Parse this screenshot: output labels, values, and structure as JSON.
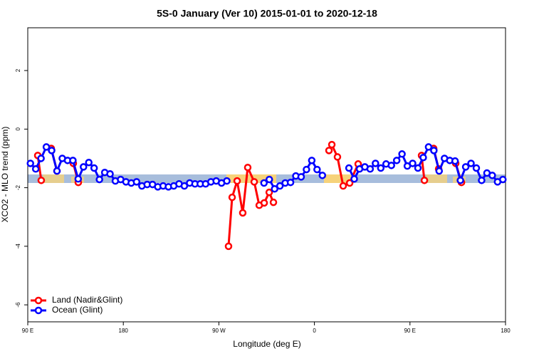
{
  "chart_data": {
    "type": "line",
    "title": "5S-0 January (Ver 10)   2015-01-01 to 2020-12-18",
    "xlabel": "Longitude (deg E)",
    "ylabel": "XCO2 - MLO trend (ppm)",
    "xlim": [
      90,
      540
    ],
    "ylim": [
      -6.58,
      3.46
    ],
    "xticks": [
      {
        "value": 90,
        "label": "90 E"
      },
      180,
      {
        "value": 270,
        "label": "90 W"
      },
      {
        "value": 360,
        "label": "0"
      },
      {
        "value": 450,
        "label": "90 E"
      },
      {
        "value": 540,
        "label": "180"
      }
    ],
    "yticks": [
      2,
      0,
      -2,
      -4,
      -6
    ],
    "legend": "bottom-left",
    "series": [
      {
        "name": "Land (Nadir&Glint)",
        "color": "#ff0000",
        "x": [
          99.4,
          102.7,
          null,
          112.1,
          117.5,
          null,
          132.9,
          137.6,
          null,
          279.1,
          282.5,
          287.2,
          292.5,
          297.2,
          303.3,
          308.0,
          312.7,
          317.4,
          321.4,
          null,
          373.7,
          376.4,
          381.7,
          387.1,
          393.2,
          401.2,
          null,
          460.9,
          463.6,
          null,
          472.3,
          477.0,
          null,
          493.1,
          498.5
        ],
        "values": [
          -0.9,
          -1.75,
          null,
          -0.66,
          -1.43,
          null,
          -1.17,
          -1.82,
          null,
          -4.0,
          -2.33,
          -1.77,
          -2.86,
          -1.31,
          -1.8,
          -2.6,
          -2.52,
          -2.16,
          -2.5,
          null,
          -0.73,
          -0.53,
          -0.95,
          -1.94,
          -1.84,
          -1.19,
          null,
          -0.9,
          -1.75,
          null,
          -0.66,
          -1.36,
          null,
          -1.17,
          -1.82
        ]
      },
      {
        "name": "Ocean (Glint)",
        "color": "#0000ff",
        "x": [
          92.5,
          97.5,
          102.5,
          107.5,
          112.5,
          117.5,
          122.5,
          127.5,
          132.5,
          137.5,
          142.5,
          147.5,
          152.5,
          157.5,
          162.5,
          167.5,
          172.5,
          177.5,
          182.5,
          187.5,
          192.5,
          197.5,
          202.5,
          207.5,
          212.5,
          217.5,
          222.5,
          227.5,
          232.5,
          237.5,
          242.5,
          247.5,
          252.5,
          257.5,
          262.5,
          267.5,
          272.5,
          277.5,
          null,
          312.5,
          317.5,
          322.5,
          327.5,
          332.5,
          337.5,
          342.5,
          347.5,
          352.5,
          357.5,
          362.5,
          367.5,
          null,
          392.5,
          397.5,
          402.5,
          407.5,
          412.5,
          417.5,
          422.5,
          427.5,
          432.5,
          437.5,
          442.5,
          447.5,
          452.5,
          457.5,
          462.5,
          467.5,
          472.5,
          477.5,
          482.5,
          487.5,
          492.5,
          497.5,
          502.5,
          507.5,
          512.5,
          517.5,
          522.5,
          527.5,
          532.5,
          537.5
        ],
        "values": [
          -1.17,
          -1.36,
          -1.0,
          -0.61,
          -0.73,
          -1.43,
          -1.0,
          -1.07,
          -1.07,
          -1.7,
          -1.29,
          -1.14,
          -1.33,
          -1.72,
          -1.48,
          -1.53,
          -1.77,
          -1.72,
          -1.8,
          -1.84,
          -1.8,
          -1.94,
          -1.89,
          -1.89,
          -1.97,
          -1.94,
          -1.97,
          -1.94,
          -1.87,
          -1.94,
          -1.84,
          -1.87,
          -1.87,
          -1.87,
          -1.8,
          -1.77,
          -1.84,
          -1.77,
          null,
          -1.84,
          -1.72,
          -2.04,
          -1.94,
          -1.84,
          -1.82,
          -1.6,
          -1.63,
          -1.38,
          -1.07,
          -1.38,
          -1.58,
          null,
          -1.33,
          -1.7,
          -1.36,
          -1.29,
          -1.36,
          -1.17,
          -1.33,
          -1.19,
          -1.24,
          -1.07,
          -0.85,
          -1.26,
          -1.17,
          -1.33,
          -0.97,
          -0.61,
          -0.73,
          -1.43,
          -1.0,
          -1.07,
          -1.09,
          -1.75,
          -1.29,
          -1.17,
          -1.33,
          -1.75,
          -1.5,
          -1.58,
          -1.8,
          -1.72
        ]
      }
    ]
  }
}
